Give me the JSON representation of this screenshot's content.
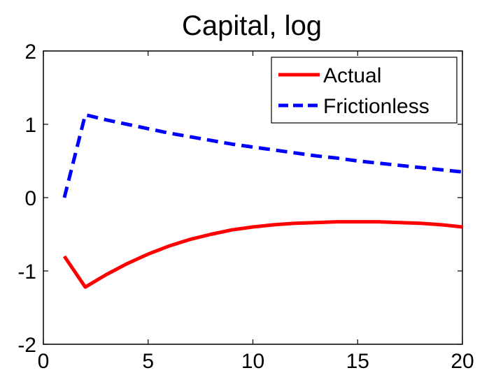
{
  "chart_data": {
    "type": "line",
    "title": "Capital, log",
    "xlabel": "",
    "ylabel": "",
    "xlim": [
      0,
      20
    ],
    "ylim": [
      -2,
      2
    ],
    "xticks": [
      0,
      5,
      10,
      15,
      20
    ],
    "yticks": [
      -2,
      -1,
      0,
      1,
      2
    ],
    "grid": false,
    "legend_position": "top-right",
    "x": [
      1,
      2,
      3,
      4,
      5,
      6,
      7,
      8,
      9,
      10,
      11,
      12,
      13,
      14,
      15,
      16,
      17,
      18,
      19,
      20
    ],
    "series": [
      {
        "name": "Actual",
        "color": "#ff0000",
        "style": "solid",
        "values": [
          -0.8,
          -1.22,
          -1.05,
          -0.9,
          -0.77,
          -0.66,
          -0.57,
          -0.5,
          -0.44,
          -0.4,
          -0.37,
          -0.35,
          -0.34,
          -0.33,
          -0.33,
          -0.33,
          -0.34,
          -0.35,
          -0.37,
          -0.4
        ]
      },
      {
        "name": "Frictionless",
        "color": "#0000ff",
        "style": "dashed",
        "values": [
          0,
          1.13,
          1.06,
          1.0,
          0.94,
          0.88,
          0.83,
          0.78,
          0.73,
          0.69,
          0.65,
          0.61,
          0.57,
          0.54,
          0.5,
          0.47,
          0.44,
          0.41,
          0.38,
          0.35
        ]
      }
    ]
  }
}
